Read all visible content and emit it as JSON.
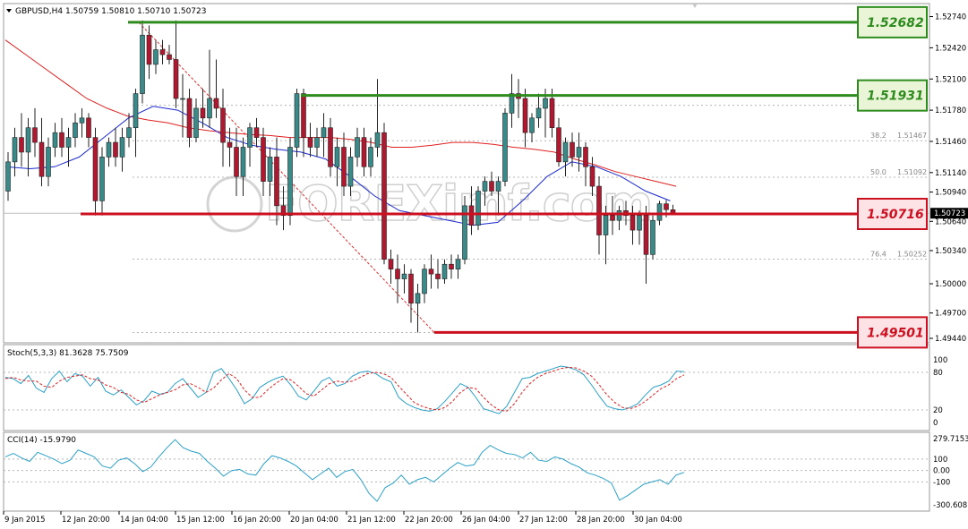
{
  "window": {
    "symbol_header": "GBPUSD,H4  1.50759 1.50810 1.50710 1.50723",
    "watermark": "FOREXimf.com"
  },
  "price_axis": {
    "ticks": [
      "1.52740",
      "1.52420",
      "1.52100",
      "1.51780",
      "1.51460",
      "1.51140",
      "1.50940",
      "1.50640",
      "1.50340",
      "1.50000",
      "1.49700",
      "1.49440"
    ],
    "current_price": "1.50723"
  },
  "time_axis": {
    "ticks": [
      "9 Jan 2015",
      "12 Jan 20:00",
      "14 Jan 04:00",
      "15 Jan 12:00",
      "16 Jan 20:00",
      "20 Jan 04:00",
      "21 Jan 12:00",
      "22 Jan 20:00",
      "26 Jan 04:00",
      "27 Jan 12:00",
      "28 Jan 20:00",
      "30 Jan 04:00"
    ]
  },
  "levels": [
    {
      "label": "1.52682",
      "color": "#2e8b1e",
      "kind": "resistance"
    },
    {
      "label": "1.51931",
      "color": "#2e8b1e",
      "kind": "resistance"
    },
    {
      "label": "1.50716",
      "color": "#cc1020",
      "kind": "support"
    },
    {
      "label": "1.49501",
      "color": "#cc1020",
      "kind": "support"
    }
  ],
  "fibo_labels": [
    {
      "ratio": "38.2",
      "price": "1.51467"
    },
    {
      "ratio": "50.0",
      "price": "1.51092"
    },
    {
      "ratio": "76.4",
      "price": "1.50252"
    }
  ],
  "stochastic": {
    "header": "Stoch(5,3,3) 81.3628 75.7509",
    "ticks": [
      "100",
      "80",
      "20",
      "0"
    ]
  },
  "cci": {
    "header": "CCI(14) -15.9790",
    "ticks": [
      "279.7153",
      "100",
      "0.00",
      "-100",
      "-300.608"
    ]
  },
  "colors": {
    "bull": "#3a8a8a",
    "bear": "#b01830",
    "ma_slow": "#e02020",
    "ma_fast": "#1a2ad0",
    "stoch_main": "#2aa0c8",
    "stoch_signal": "#e02020",
    "cci_line": "#2aa0c8"
  },
  "chart_data": {
    "type": "candlestick",
    "symbol": "GBPUSD",
    "timeframe": "H4",
    "ylim": [
      1.4944,
      1.528
    ],
    "candles": [
      [
        1.5095,
        1.5135,
        1.5085,
        1.5125
      ],
      [
        1.5125,
        1.516,
        1.511,
        1.515
      ],
      [
        1.515,
        1.5175,
        1.512,
        1.5135
      ],
      [
        1.5135,
        1.517,
        1.511,
        1.516
      ],
      [
        1.516,
        1.518,
        1.513,
        1.5145
      ],
      [
        1.5145,
        1.517,
        1.51,
        1.511
      ],
      [
        1.511,
        1.515,
        1.51,
        1.514
      ],
      [
        1.514,
        1.5165,
        1.513,
        1.5155
      ],
      [
        1.5155,
        1.517,
        1.513,
        1.514
      ],
      [
        1.514,
        1.516,
        1.512,
        1.515
      ],
      [
        1.515,
        1.5175,
        1.514,
        1.5165
      ],
      [
        1.5165,
        1.518,
        1.515,
        1.517
      ],
      [
        1.517,
        1.5175,
        1.514,
        1.515
      ],
      [
        1.515,
        1.516,
        1.507,
        1.5085
      ],
      [
        1.5085,
        1.514,
        1.507,
        1.513
      ],
      [
        1.513,
        1.515,
        1.512,
        1.5145
      ],
      [
        1.5145,
        1.516,
        1.512,
        1.513
      ],
      [
        1.513,
        1.516,
        1.5115,
        1.515
      ],
      [
        1.515,
        1.5175,
        1.514,
        1.516
      ],
      [
        1.516,
        1.52,
        1.513,
        1.5195
      ],
      [
        1.5195,
        1.527,
        1.5185,
        1.5255
      ],
      [
        1.5255,
        1.5265,
        1.521,
        1.5225
      ],
      [
        1.5225,
        1.525,
        1.5215,
        1.524
      ],
      [
        1.524,
        1.525,
        1.5225,
        1.5235
      ],
      [
        1.5235,
        1.5245,
        1.5225,
        1.523
      ],
      [
        1.523,
        1.527,
        1.518,
        1.519
      ],
      [
        1.519,
        1.5215,
        1.515,
        1.519
      ],
      [
        1.519,
        1.52,
        1.514,
        1.515
      ],
      [
        1.515,
        1.519,
        1.5145,
        1.518
      ],
      [
        1.518,
        1.52,
        1.516,
        1.517
      ],
      [
        1.517,
        1.524,
        1.516,
        1.519
      ],
      [
        1.519,
        1.523,
        1.517,
        1.518
      ],
      [
        1.518,
        1.52,
        1.512,
        1.5145
      ],
      [
        1.5145,
        1.516,
        1.512,
        1.514
      ],
      [
        1.514,
        1.516,
        1.509,
        1.511
      ],
      [
        1.511,
        1.515,
        1.509,
        1.514
      ],
      [
        1.514,
        1.5165,
        1.512,
        1.516
      ],
      [
        1.516,
        1.517,
        1.514,
        1.515
      ],
      [
        1.515,
        1.516,
        1.509,
        1.5105
      ],
      [
        1.5105,
        1.514,
        1.509,
        1.513
      ],
      [
        1.513,
        1.515,
        1.506,
        1.508
      ],
      [
        1.508,
        1.51,
        1.5055,
        1.507
      ],
      [
        1.507,
        1.515,
        1.506,
        1.514
      ],
      [
        1.514,
        1.52,
        1.513,
        1.5195
      ],
      [
        1.5195,
        1.52,
        1.513,
        1.515
      ],
      [
        1.515,
        1.5165,
        1.513,
        1.514
      ],
      [
        1.514,
        1.516,
        1.513,
        1.515
      ],
      [
        1.515,
        1.5175,
        1.513,
        1.516
      ],
      [
        1.516,
        1.517,
        1.511,
        1.512
      ],
      [
        1.512,
        1.515,
        1.51,
        1.514
      ],
      [
        1.514,
        1.5155,
        1.509,
        1.51
      ],
      [
        1.51,
        1.514,
        1.509,
        1.513
      ],
      [
        1.513,
        1.516,
        1.512,
        1.515
      ],
      [
        1.515,
        1.516,
        1.511,
        1.512
      ],
      [
        1.512,
        1.515,
        1.511,
        1.514
      ],
      [
        1.514,
        1.521,
        1.513,
        1.5155
      ],
      [
        1.5155,
        1.5165,
        1.502,
        1.5025
      ],
      [
        1.5025,
        1.5035,
        1.5,
        1.5015
      ],
      [
        1.5015,
        1.503,
        1.498,
        1.5005
      ],
      [
        1.5005,
        1.502,
        1.499,
        1.501
      ],
      [
        1.501,
        1.5015,
        1.496,
        1.498
      ],
      [
        1.498,
        1.5,
        1.495,
        1.499
      ],
      [
        1.499,
        1.502,
        1.498,
        1.5015
      ],
      [
        1.5015,
        1.503,
        1.4995,
        1.501
      ],
      [
        1.501,
        1.5025,
        1.4995,
        1.5005
      ],
      [
        1.5005,
        1.5025,
        1.5,
        1.502
      ],
      [
        1.502,
        1.503,
        1.5005,
        1.5015
      ],
      [
        1.5015,
        1.503,
        1.5005,
        1.5025
      ],
      [
        1.5025,
        1.509,
        1.502,
        1.508
      ],
      [
        1.508,
        1.51,
        1.505,
        1.506
      ],
      [
        1.506,
        1.51,
        1.5055,
        1.5095
      ],
      [
        1.5095,
        1.511,
        1.508,
        1.5105
      ],
      [
        1.5105,
        1.5115,
        1.509,
        1.5095
      ],
      [
        1.5095,
        1.511,
        1.507,
        1.5105
      ],
      [
        1.5105,
        1.518,
        1.51,
        1.5175
      ],
      [
        1.5175,
        1.5215,
        1.516,
        1.5195
      ],
      [
        1.5195,
        1.521,
        1.517,
        1.519
      ],
      [
        1.519,
        1.52,
        1.514,
        1.5155
      ],
      [
        1.5155,
        1.5175,
        1.5145,
        1.517
      ],
      [
        1.517,
        1.5195,
        1.516,
        1.518
      ],
      [
        1.518,
        1.52,
        1.515,
        1.519
      ],
      [
        1.519,
        1.52,
        1.515,
        1.516
      ],
      [
        1.516,
        1.517,
        1.512,
        1.5125
      ],
      [
        1.5125,
        1.515,
        1.511,
        1.5145
      ],
      [
        1.5145,
        1.5155,
        1.512,
        1.513
      ],
      [
        1.513,
        1.5155,
        1.5115,
        1.514
      ],
      [
        1.514,
        1.5145,
        1.51,
        1.512
      ],
      [
        1.512,
        1.513,
        1.509,
        1.51
      ],
      [
        1.51,
        1.511,
        1.503,
        1.505
      ],
      [
        1.505,
        1.508,
        1.502,
        1.507
      ],
      [
        1.507,
        1.509,
        1.505,
        1.5065
      ],
      [
        1.5065,
        1.508,
        1.5055,
        1.5075
      ],
      [
        1.5075,
        1.5085,
        1.506,
        1.507
      ],
      [
        1.507,
        1.508,
        1.504,
        1.5055
      ],
      [
        1.5055,
        1.5075,
        1.504,
        1.507
      ],
      [
        1.507,
        1.508,
        1.5,
        1.503
      ],
      [
        1.503,
        1.507,
        1.5025,
        1.5065
      ],
      [
        1.5065,
        1.5085,
        1.506,
        1.5082
      ],
      [
        1.5082,
        1.5086,
        1.5068,
        1.5076
      ],
      [
        1.50759,
        1.5081,
        1.5071,
        1.50723
      ]
    ],
    "ma_slow": [
      1.525,
      1.5235,
      1.522,
      1.5205,
      1.519,
      1.518,
      1.5172,
      1.5168,
      1.5165,
      1.516,
      1.5157,
      1.5155,
      1.5153,
      1.5152,
      1.515,
      1.515,
      1.515,
      1.5148,
      1.5145,
      1.514,
      1.514,
      1.5142,
      1.5145,
      1.5145,
      1.5143,
      1.514,
      1.5138,
      1.5135,
      1.5128,
      1.5122,
      1.5115,
      1.511,
      1.5105,
      1.51
    ],
    "ma_fast": [
      1.512,
      1.5118,
      1.512,
      1.513,
      1.515,
      1.517,
      1.5182,
      1.5178,
      1.5165,
      1.515,
      1.5142,
      1.5138,
      1.5135,
      1.5128,
      1.511,
      1.509,
      1.5075,
      1.507,
      1.5065,
      1.506,
      1.5063,
      1.5085,
      1.511,
      1.5125,
      1.512,
      1.511,
      1.5095,
      1.5085
    ],
    "stoch_main": [
      72,
      70,
      62,
      75,
      55,
      48,
      70,
      82,
      65,
      78,
      74,
      58,
      72,
      50,
      44,
      52,
      40,
      28,
      35,
      50,
      45,
      48,
      62,
      70,
      55,
      40,
      48,
      80,
      86,
      70,
      52,
      30,
      38,
      56,
      64,
      70,
      74,
      60,
      42,
      36,
      50,
      66,
      72,
      58,
      62,
      74,
      80,
      82,
      78,
      70,
      65,
      40,
      30,
      24,
      20,
      18,
      22,
      34,
      48,
      62,
      56,
      40,
      22,
      18,
      14,
      26,
      48,
      70,
      72,
      78,
      82,
      86,
      90,
      88,
      84,
      76,
      60,
      42,
      26,
      22,
      20,
      24,
      30,
      44,
      56,
      60,
      66,
      82,
      81
    ],
    "stoch_signal": [
      70,
      72,
      68,
      66,
      66,
      58,
      56,
      66,
      72,
      74,
      76,
      70,
      68,
      60,
      56,
      48,
      45,
      36,
      32,
      38,
      44,
      48,
      52,
      60,
      62,
      56,
      48,
      55,
      68,
      78,
      70,
      52,
      40,
      40,
      52,
      62,
      70,
      68,
      58,
      46,
      42,
      52,
      62,
      66,
      64,
      66,
      72,
      78,
      80,
      78,
      72,
      58,
      45,
      32,
      26,
      22,
      20,
      24,
      34,
      48,
      56,
      54,
      40,
      28,
      20,
      18,
      30,
      48,
      62,
      72,
      78,
      82,
      86,
      88,
      87,
      82,
      74,
      60,
      44,
      32,
      24,
      22,
      26,
      34,
      44,
      54,
      60,
      70,
      76
    ],
    "cci": [
      120,
      150,
      110,
      80,
      160,
      130,
      100,
      60,
      90,
      180,
      150,
      120,
      40,
      20,
      90,
      110,
      60,
      -10,
      30,
      120,
      200,
      270,
      200,
      170,
      150,
      80,
      20,
      -50,
      0,
      10,
      -30,
      -40,
      60,
      130,
      110,
      80,
      40,
      -20,
      -80,
      -30,
      20,
      -60,
      -10,
      10,
      -80,
      -200,
      -270,
      -150,
      -110,
      -40,
      -120,
      -80,
      -60,
      -100,
      -40,
      20,
      70,
      40,
      50,
      160,
      220,
      180,
      150,
      140,
      110,
      160,
      90,
      80,
      120,
      100,
      60,
      30,
      -20,
      -40,
      -70,
      -110,
      -260,
      -220,
      -170,
      -120,
      -100,
      -80,
      -120,
      -40,
      -16
    ]
  }
}
